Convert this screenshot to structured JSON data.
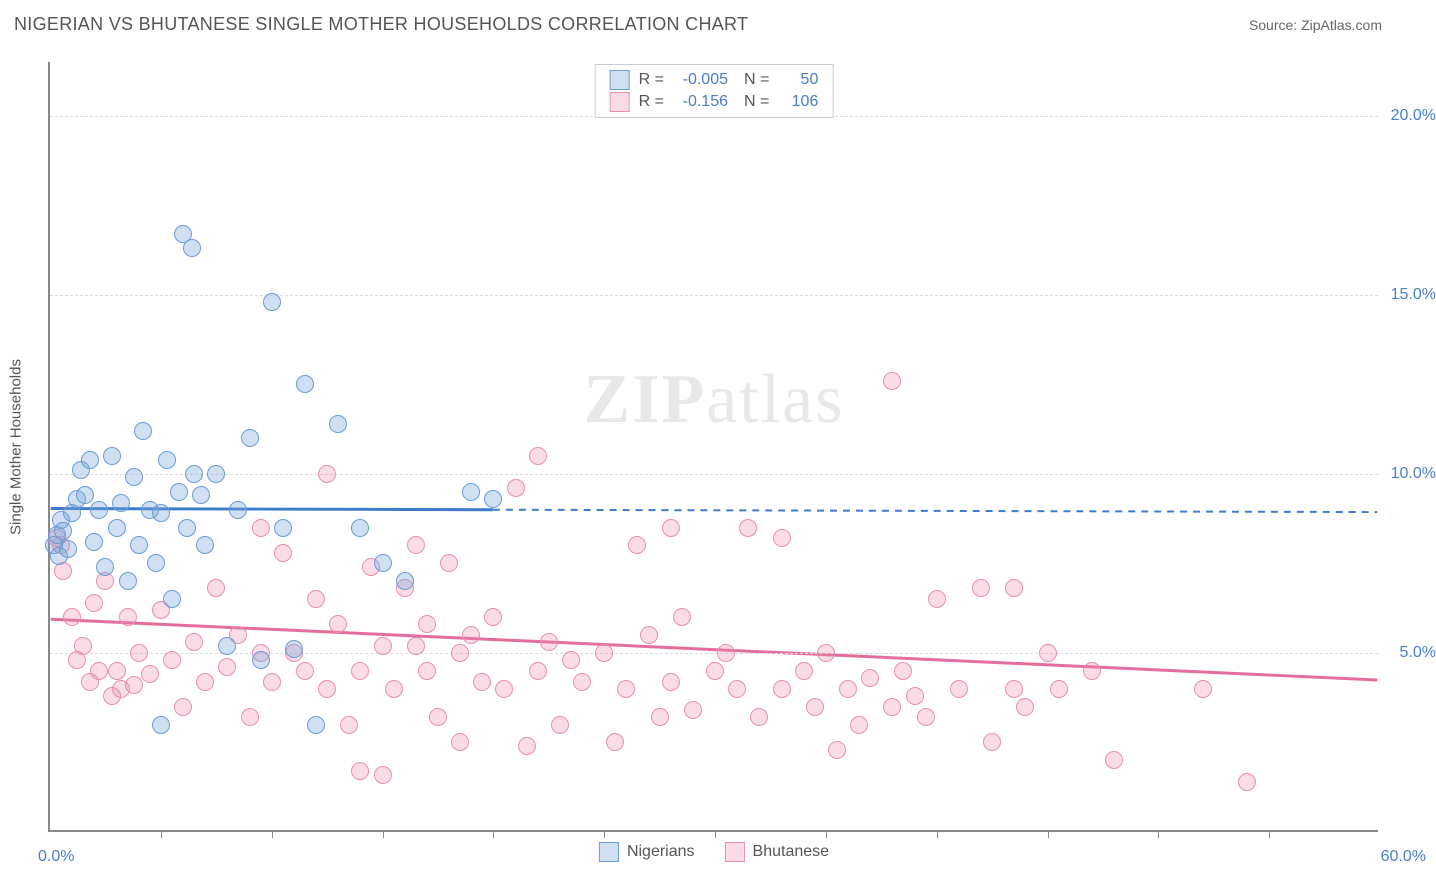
{
  "title": "NIGERIAN VS BHUTANESE SINGLE MOTHER HOUSEHOLDS CORRELATION CHART",
  "source": "Source: ZipAtlas.com",
  "watermark_bold": "ZIP",
  "watermark_rest": "atlas",
  "yaxis_title": "Single Mother Households",
  "chart": {
    "type": "scatter",
    "xlim": [
      0,
      60
    ],
    "ylim": [
      0,
      21.5
    ],
    "y_ticks": [
      5,
      10,
      15,
      20
    ],
    "y_tick_labels": [
      "5.0%",
      "10.0%",
      "15.0%",
      "20.0%"
    ],
    "x_tick_positions": [
      5,
      10,
      15,
      20,
      25,
      30,
      35,
      40,
      45,
      50,
      55
    ],
    "x_min_label": "0.0%",
    "x_max_label": "60.0%",
    "background_color": "#ffffff",
    "grid_color": "#dcdcdc",
    "axis_color": "#888888",
    "tick_label_color": "#4a7ec7",
    "marker_radius": 9,
    "series": [
      {
        "name": "Nigerians",
        "fill": "rgba(120,165,218,0.35)",
        "stroke": "#6a9bd6",
        "line_color": "#3d7cc9",
        "line_width": 3,
        "R": "-0.005",
        "N": "50",
        "trend": {
          "y_start": 9.0,
          "y_end": 8.9,
          "solid_until_x": 20
        },
        "points": [
          [
            0.2,
            8.0
          ],
          [
            0.3,
            8.3
          ],
          [
            0.4,
            7.7
          ],
          [
            0.5,
            8.7
          ],
          [
            0.6,
            8.4
          ],
          [
            0.8,
            7.9
          ],
          [
            1.0,
            8.9
          ],
          [
            1.2,
            9.3
          ],
          [
            1.4,
            10.1
          ],
          [
            1.6,
            9.4
          ],
          [
            1.8,
            10.4
          ],
          [
            2.0,
            8.1
          ],
          [
            2.2,
            9.0
          ],
          [
            2.5,
            7.4
          ],
          [
            2.8,
            10.5
          ],
          [
            3.0,
            8.5
          ],
          [
            3.2,
            9.2
          ],
          [
            3.5,
            7.0
          ],
          [
            3.8,
            9.9
          ],
          [
            4.0,
            8.0
          ],
          [
            4.2,
            11.2
          ],
          [
            4.5,
            9.0
          ],
          [
            4.8,
            7.5
          ],
          [
            5.0,
            8.9
          ],
          [
            5.0,
            3.0
          ],
          [
            5.3,
            10.4
          ],
          [
            5.5,
            6.5
          ],
          [
            5.8,
            9.5
          ],
          [
            6.0,
            16.7
          ],
          [
            6.2,
            8.5
          ],
          [
            6.4,
            16.3
          ],
          [
            6.5,
            10.0
          ],
          [
            6.8,
            9.4
          ],
          [
            7.0,
            8.0
          ],
          [
            7.5,
            10.0
          ],
          [
            8.0,
            5.2
          ],
          [
            8.5,
            9.0
          ],
          [
            9.0,
            11.0
          ],
          [
            9.5,
            4.8
          ],
          [
            10.0,
            14.8
          ],
          [
            10.5,
            8.5
          ],
          [
            11.0,
            5.1
          ],
          [
            11.5,
            12.5
          ],
          [
            12.0,
            3.0
          ],
          [
            13.0,
            11.4
          ],
          [
            14.0,
            8.5
          ],
          [
            15.0,
            7.5
          ],
          [
            16.0,
            7.0
          ],
          [
            19.0,
            9.5
          ],
          [
            20.0,
            9.3
          ]
        ]
      },
      {
        "name": "Bhutanese",
        "fill": "rgba(236,140,171,0.30)",
        "stroke": "#e88fb0",
        "line_color": "#e36d9c",
        "line_width": 3,
        "R": "-0.156",
        "N": "106",
        "trend": {
          "y_start": 5.9,
          "y_end": 4.2,
          "solid_until_x": 60
        },
        "points": [
          [
            0.3,
            8.2
          ],
          [
            0.5,
            8.0
          ],
          [
            0.6,
            7.3
          ],
          [
            1.0,
            6.0
          ],
          [
            1.2,
            4.8
          ],
          [
            1.5,
            5.2
          ],
          [
            1.8,
            4.2
          ],
          [
            2.0,
            6.4
          ],
          [
            2.2,
            4.5
          ],
          [
            2.5,
            7.0
          ],
          [
            2.8,
            3.8
          ],
          [
            3.0,
            4.5
          ],
          [
            3.2,
            4.0
          ],
          [
            3.5,
            6.0
          ],
          [
            3.8,
            4.1
          ],
          [
            4.0,
            5.0
          ],
          [
            4.5,
            4.4
          ],
          [
            5.0,
            6.2
          ],
          [
            5.5,
            4.8
          ],
          [
            6.0,
            3.5
          ],
          [
            6.5,
            5.3
          ],
          [
            7.0,
            4.2
          ],
          [
            7.5,
            6.8
          ],
          [
            8.0,
            4.6
          ],
          [
            8.5,
            5.5
          ],
          [
            9.0,
            3.2
          ],
          [
            9.5,
            5.0
          ],
          [
            9.5,
            8.5
          ],
          [
            10.0,
            4.2
          ],
          [
            10.5,
            7.8
          ],
          [
            11.0,
            5.0
          ],
          [
            11.5,
            4.5
          ],
          [
            12.0,
            6.5
          ],
          [
            12.5,
            4.0
          ],
          [
            12.5,
            10.0
          ],
          [
            13.0,
            5.8
          ],
          [
            13.5,
            3.0
          ],
          [
            14.0,
            4.5
          ],
          [
            14.0,
            1.7
          ],
          [
            14.5,
            7.4
          ],
          [
            15.0,
            1.6
          ],
          [
            15.0,
            5.2
          ],
          [
            15.5,
            4.0
          ],
          [
            16.0,
            6.8
          ],
          [
            16.5,
            8.0
          ],
          [
            16.5,
            5.2
          ],
          [
            17.0,
            4.5
          ],
          [
            17.0,
            5.8
          ],
          [
            17.5,
            3.2
          ],
          [
            18.0,
            7.5
          ],
          [
            18.5,
            2.5
          ],
          [
            18.5,
            5.0
          ],
          [
            19.0,
            5.5
          ],
          [
            19.5,
            4.2
          ],
          [
            20.0,
            6.0
          ],
          [
            20.5,
            4.0
          ],
          [
            21.0,
            9.6
          ],
          [
            21.5,
            2.4
          ],
          [
            22.0,
            4.5
          ],
          [
            22.0,
            10.5
          ],
          [
            22.5,
            5.3
          ],
          [
            23.0,
            3.0
          ],
          [
            23.5,
            4.8
          ],
          [
            24.0,
            4.2
          ],
          [
            25.0,
            5.0
          ],
          [
            25.5,
            2.5
          ],
          [
            26.0,
            4.0
          ],
          [
            26.5,
            8.0
          ],
          [
            27.0,
            5.5
          ],
          [
            27.5,
            3.2
          ],
          [
            28.0,
            4.2
          ],
          [
            28.0,
            8.5
          ],
          [
            28.5,
            6.0
          ],
          [
            29.0,
            3.4
          ],
          [
            30.0,
            4.5
          ],
          [
            30.5,
            5.0
          ],
          [
            31.0,
            4.0
          ],
          [
            31.5,
            8.5
          ],
          [
            32.0,
            3.2
          ],
          [
            33.0,
            4.0
          ],
          [
            33.0,
            8.2
          ],
          [
            34.0,
            4.5
          ],
          [
            34.5,
            3.5
          ],
          [
            35.0,
            5.0
          ],
          [
            35.5,
            2.3
          ],
          [
            36.0,
            4.0
          ],
          [
            36.5,
            3.0
          ],
          [
            37.0,
            4.3
          ],
          [
            38.0,
            3.5
          ],
          [
            38.0,
            12.6
          ],
          [
            38.5,
            4.5
          ],
          [
            39.0,
            3.8
          ],
          [
            39.5,
            3.2
          ],
          [
            40.0,
            6.5
          ],
          [
            41.0,
            4.0
          ],
          [
            42.0,
            6.8
          ],
          [
            42.5,
            2.5
          ],
          [
            43.5,
            4.0
          ],
          [
            43.5,
            6.8
          ],
          [
            44.0,
            3.5
          ],
          [
            45.0,
            5.0
          ],
          [
            45.5,
            4.0
          ],
          [
            47.0,
            4.5
          ],
          [
            48.0,
            2.0
          ],
          [
            52.0,
            4.0
          ],
          [
            54.0,
            1.4
          ]
        ]
      }
    ]
  },
  "legend_top": {
    "r_label": "R =",
    "n_label": "N ="
  },
  "legend_bottom_series": [
    "Nigerians",
    "Bhutanese"
  ]
}
